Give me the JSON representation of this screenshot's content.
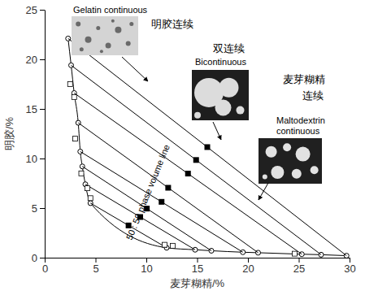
{
  "chart_data": {
    "type": "scatter",
    "x_label": "麦芽糊精/%",
    "y_label": "明胶/%",
    "xlim": [
      0,
      30
    ],
    "ylim": [
      0,
      25
    ],
    "xticks": [
      0,
      5,
      10,
      15,
      20,
      25,
      30
    ],
    "yticks": [
      0,
      5,
      10,
      15,
      20,
      25
    ],
    "annotations": [
      "Gelatin continuous",
      "明胶连续",
      "双连续",
      "Bicontinuous",
      "麦芽糊精",
      "连续",
      "Maltodextrin",
      "continuous",
      "50 : 50 phase volume line"
    ],
    "series": [
      {
        "type": "line",
        "marker": "circle",
        "line_style": "solid",
        "color": "#000000",
        "x": [
          2.3,
          2.6,
          2.9,
          3.3,
          3.5,
          3.7,
          4.0,
          4.5,
          12.0,
          14.8,
          16.4,
          19.5,
          21.0,
          25.3,
          27.2,
          29.7
        ],
        "values": [
          22.1,
          19.4,
          16.6,
          13.6,
          10.7,
          9.2,
          7.4,
          5.5,
          1.0,
          0.8,
          0.7,
          0.55,
          0.5,
          0.35,
          0.3,
          0.2
        ]
      },
      {
        "type": "line",
        "marker": "none",
        "line_style": "solid",
        "color": "#000000",
        "x": [
          2.3,
          29.7
        ],
        "values": [
          22.1,
          0.2
        ]
      },
      {
        "type": "line",
        "marker": "none",
        "line_style": "solid",
        "color": "#000000",
        "x": [
          2.6,
          27.2
        ],
        "values": [
          19.4,
          0.3
        ]
      },
      {
        "type": "line",
        "marker": "none",
        "line_style": "solid",
        "color": "#000000",
        "x": [
          2.9,
          25.3
        ],
        "values": [
          16.6,
          0.35
        ]
      },
      {
        "type": "line",
        "marker": "none",
        "line_style": "solid",
        "color": "#000000",
        "x": [
          3.3,
          21.0
        ],
        "values": [
          13.6,
          0.5
        ]
      },
      {
        "type": "line",
        "marker": "none",
        "line_style": "solid",
        "color": "#000000",
        "x": [
          3.5,
          19.5
        ],
        "values": [
          10.7,
          0.55
        ]
      },
      {
        "type": "line",
        "marker": "none",
        "line_style": "solid",
        "color": "#000000",
        "x": [
          3.7,
          16.4
        ],
        "values": [
          9.2,
          0.7
        ]
      },
      {
        "type": "line",
        "marker": "none",
        "line_style": "solid",
        "color": "#000000",
        "x": [
          4.0,
          14.8
        ],
        "values": [
          7.4,
          0.8
        ]
      },
      {
        "type": "line",
        "marker": "none",
        "line_style": "solid",
        "color": "#000000",
        "x": [
          4.5,
          12.0
        ],
        "values": [
          5.5,
          1.0
        ]
      },
      {
        "type": "scatter",
        "marker": "square-open",
        "line_style": "none",
        "color": "#000000",
        "x": [
          2.5,
          2.9,
          3.0,
          3.6,
          4.2,
          4.5,
          11.8,
          12.6,
          24.6
        ],
        "values": [
          17.5,
          16.2,
          12.0,
          8.5,
          7.0,
          6.0,
          1.3,
          1.2,
          0.4
        ]
      },
      {
        "type": "scatter",
        "marker": "square",
        "line_style": "none",
        "color": "#000000",
        "x": [
          16.0,
          14.9,
          14.1,
          12.15,
          11.5,
          10.05,
          9.4,
          8.25
        ],
        "values": [
          11.15,
          9.85,
          8.48,
          7.05,
          5.63,
          4.95,
          4.1,
          3.25
        ]
      }
    ]
  }
}
